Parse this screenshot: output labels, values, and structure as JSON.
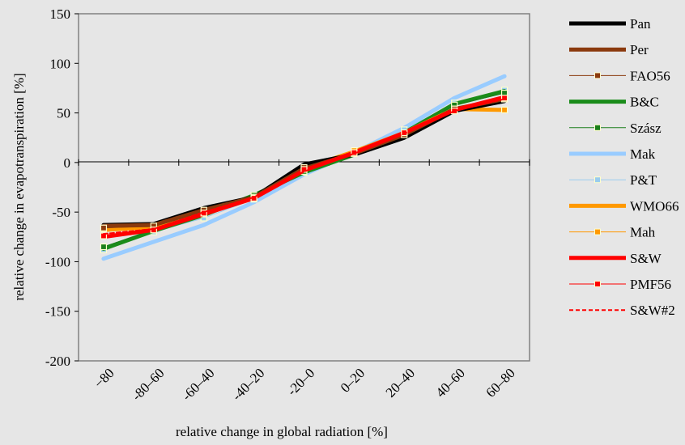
{
  "chart_data": {
    "type": "line",
    "title": "",
    "xlabel": "relative change in global radiation [%]",
    "ylabel": "relative change in evapotranspiration [%]",
    "ylim": [
      -200,
      150
    ],
    "yticks": [
      150,
      100,
      50,
      0,
      -50,
      -100,
      -150,
      -200
    ],
    "categories": [
      "−80",
      "-80–60",
      "-60–40",
      "-40–20",
      "-20–0",
      "0–20",
      "20–40",
      "40–60",
      "60–80"
    ],
    "grid": false,
    "legend_position": "right",
    "series": [
      {
        "name": "Pan",
        "color": "#000000",
        "style": "thick",
        "marker": false,
        "values": [
          -63,
          -62,
          -46,
          -35,
          -2,
          8,
          25,
          52,
          62
        ]
      },
      {
        "name": "Per",
        "color": "#8b3a0e",
        "style": "thick",
        "marker": false,
        "values": [
          -64,
          -63,
          -48,
          -35,
          -6,
          9,
          28,
          54,
          64
        ]
      },
      {
        "name": "FAO56",
        "color": "#8b3a0e",
        "style": "thin",
        "marker": true,
        "values": [
          -66,
          -64,
          -48,
          -35,
          -5,
          9,
          28,
          54,
          64
        ]
      },
      {
        "name": "B&C",
        "color": "#1a8c1a",
        "style": "thick",
        "marker": false,
        "values": [
          -87,
          -69,
          -53,
          -33,
          -10,
          8,
          30,
          59,
          72
        ]
      },
      {
        "name": "Szász",
        "color": "#1a7f1a",
        "style": "thin",
        "marker": true,
        "values": [
          -85,
          -68,
          -52,
          -33,
          -9,
          9,
          29,
          58,
          70
        ]
      },
      {
        "name": "Mak",
        "color": "#99ccff",
        "style": "thick",
        "marker": false,
        "values": [
          -97,
          -80,
          -63,
          -40,
          -12,
          10,
          35,
          65,
          87
        ]
      },
      {
        "name": "P&T",
        "color": "#99ccee",
        "style": "thin",
        "marker": true,
        "values": [
          -88,
          -70,
          -56,
          -37,
          -10,
          10,
          33,
          60,
          73
        ]
      },
      {
        "name": "WMO66",
        "color": "#ff9900",
        "style": "thick",
        "marker": false,
        "values": [
          -68,
          -65,
          -50,
          -36,
          -6,
          11,
          30,
          54,
          53
        ]
      },
      {
        "name": "Mah",
        "color": "#ff9900",
        "style": "thin",
        "marker": true,
        "values": [
          -67,
          -65,
          -49,
          -36,
          -5,
          12,
          30,
          54,
          53
        ]
      },
      {
        "name": "S&W",
        "color": "#ff0000",
        "style": "thick",
        "marker": false,
        "values": [
          -75,
          -68,
          -52,
          -36,
          -8,
          10,
          30,
          53,
          66
        ]
      },
      {
        "name": "PMF56",
        "color": "#ff0000",
        "style": "thin",
        "marker": true,
        "values": [
          -74,
          -68,
          -51,
          -36,
          -7,
          10,
          30,
          52,
          65
        ]
      },
      {
        "name": "S&W#2",
        "color": "#ff0000",
        "style": "dashed",
        "marker": false,
        "values": [
          -72,
          -67,
          -50,
          -35,
          -9,
          9,
          29,
          52,
          64
        ]
      }
    ]
  }
}
